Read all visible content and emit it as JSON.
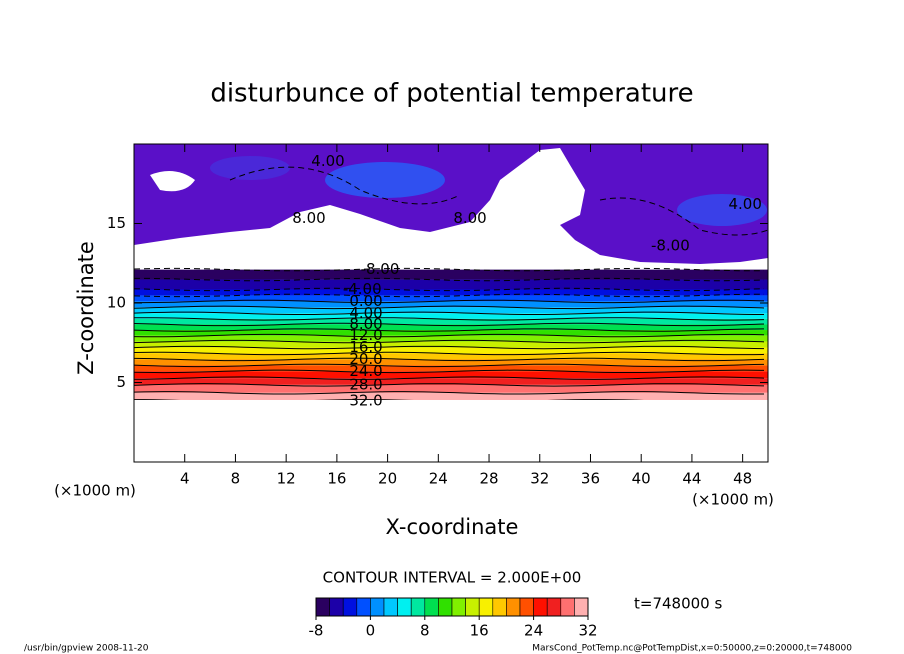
{
  "chart_data": {
    "type": "contour",
    "title": "disturbunce of potential temperature",
    "xlabel": "X-coordinate",
    "ylabel": "Z-coordinate",
    "x_unit": "(×1000 m)",
    "y_unit": "(×1000 m)",
    "xlim": [
      0,
      50
    ],
    "xticks": [
      4,
      8,
      12,
      16,
      20,
      24,
      28,
      32,
      36,
      40,
      44,
      48
    ],
    "ylim": [
      0,
      20
    ],
    "yticks": [
      5,
      10,
      15
    ],
    "contours": [
      {
        "value": 32,
        "label": "32.0",
        "x": 18.3,
        "z": 3.85
      },
      {
        "value": 28,
        "label": "28.0",
        "x": 18.3,
        "z": 4.85
      },
      {
        "value": 24,
        "label": "24.0",
        "x": 18.3,
        "z": 5.7
      },
      {
        "value": 20,
        "label": "20.0",
        "x": 18.3,
        "z": 6.45
      },
      {
        "value": 16,
        "label": "16.0",
        "x": 18.3,
        "z": 7.2
      },
      {
        "value": 12,
        "label": "12.0",
        "x": 18.3,
        "z": 7.95
      },
      {
        "value": 8,
        "label": "8.00",
        "x": 18.3,
        "z": 8.65
      },
      {
        "value": 4,
        "label": "4.00",
        "x": 18.3,
        "z": 9.35
      },
      {
        "value": 0,
        "label": "0.00",
        "x": 18.3,
        "z": 10.1
      },
      {
        "value": -4,
        "label": "-4.00",
        "x": 18.0,
        "z": 10.85
      },
      {
        "value": -8,
        "label": "-8.00",
        "x": 19.4,
        "z": 12.1
      }
    ],
    "upper_labels": [
      {
        "value": 4,
        "label": "4.00",
        "x": 15.3,
        "z": 18.9
      },
      {
        "value": 8,
        "label": "8.00",
        "x": 13.8,
        "z": 15.3
      },
      {
        "value": 8,
        "label": "8.00",
        "x": 26.5,
        "z": 15.3
      },
      {
        "value": -8,
        "label": "-8.00",
        "x": 42.3,
        "z": 13.6
      },
      {
        "value": 4,
        "label": "4.00",
        "x": 48.2,
        "z": 16.2
      }
    ],
    "contour_interval": "CONTOUR INTERVAL = 2.000E+00",
    "clim": [
      -8,
      32
    ],
    "cticks": [
      -8,
      0,
      8,
      16,
      24,
      32
    ],
    "colors": [
      "#2a0060",
      "#1c00a8",
      "#0010e0",
      "#0050ff",
      "#0090ff",
      "#00c8ff",
      "#00f0f0",
      "#00e8a0",
      "#00e050",
      "#30e000",
      "#80f000",
      "#c8f000",
      "#f8f000",
      "#ffc800",
      "#ff9000",
      "#ff5000",
      "#ff1000",
      "#f02020",
      "#ff7070",
      "#ffb0b0"
    ],
    "time": "t=748000 s",
    "footer_left": "/usr/bin/gpview   2008-11-20",
    "footer_right": "MarsCond_PotTemp.nc@PotTempDist,x=0:50000,z=0:20000,t=748000"
  }
}
